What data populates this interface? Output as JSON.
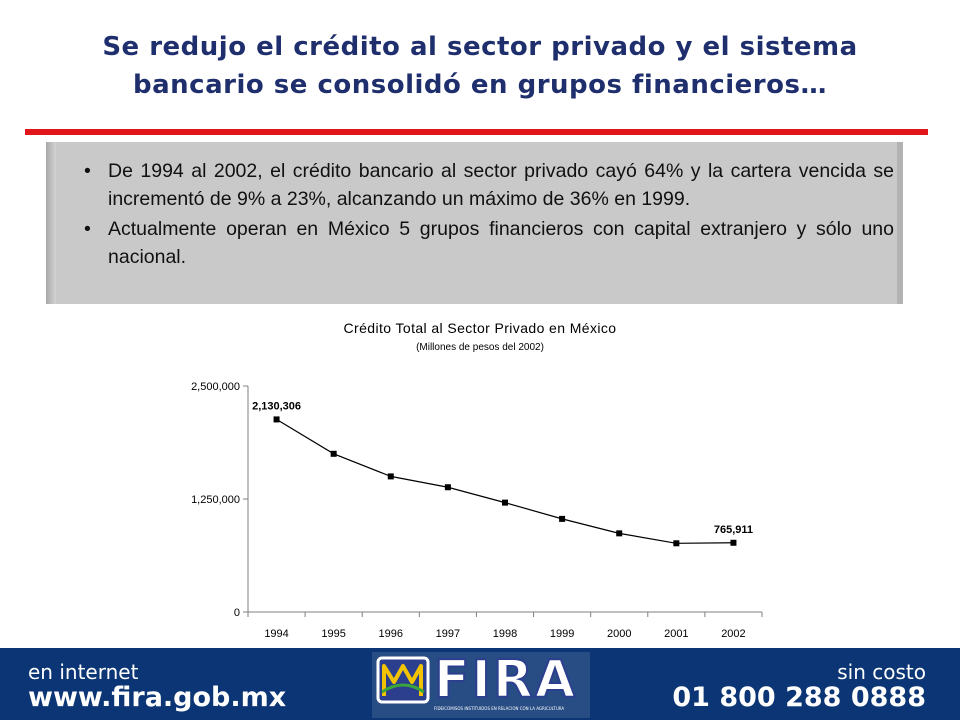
{
  "slide": {
    "title_line1": "Se redujo el crédito al sector privado y el sistema",
    "title_line2": "bancario se consolidó en grupos financieros…",
    "bullets": [
      "De 1994 al 2002, el crédito bancario al sector privado cayó 64% y la cartera vencida se incrementó de 9% a 23%, alcanzando un máximo de 36% en 1999.",
      "Actualmente operan en México 5 grupos financieros con capital extranjero y sólo uno nacional."
    ],
    "bullet_symbol": "•"
  },
  "chart_data": {
    "type": "line",
    "title": "Crédito Total al Sector Privado en México",
    "subtitle": "(Millones de pesos del 2002)",
    "x": [
      "1994",
      "1995",
      "1996",
      "1997",
      "1998",
      "1999",
      "2000",
      "2001",
      "2002"
    ],
    "series": [
      {
        "values": [
          2130306,
          1750000,
          1500000,
          1380000,
          1210000,
          1030000,
          870000,
          760000,
          765911
        ]
      }
    ],
    "data_labels": [
      {
        "index": 0,
        "text": "2,130,306"
      },
      {
        "index": 8,
        "text": "765,911"
      }
    ],
    "ylim": [
      0,
      2500000
    ],
    "yticks": [
      0,
      1250000,
      2500000
    ],
    "ytick_labels": [
      "0",
      "1,250,000",
      "2,500,000"
    ],
    "grid": false,
    "line_color": "#000000",
    "marker": "square"
  },
  "footer": {
    "left_label": "en internet",
    "left_url": "www.fira.gob.mx",
    "right_label": "sin costo",
    "right_phone": "01 800 288 0888",
    "logo_text": "FIRA",
    "logo_tagline": "FIDEICOMISOS INSTITUIDOS EN RELACION CON LA AGRICULTURA",
    "background_color": "#0b3574"
  }
}
